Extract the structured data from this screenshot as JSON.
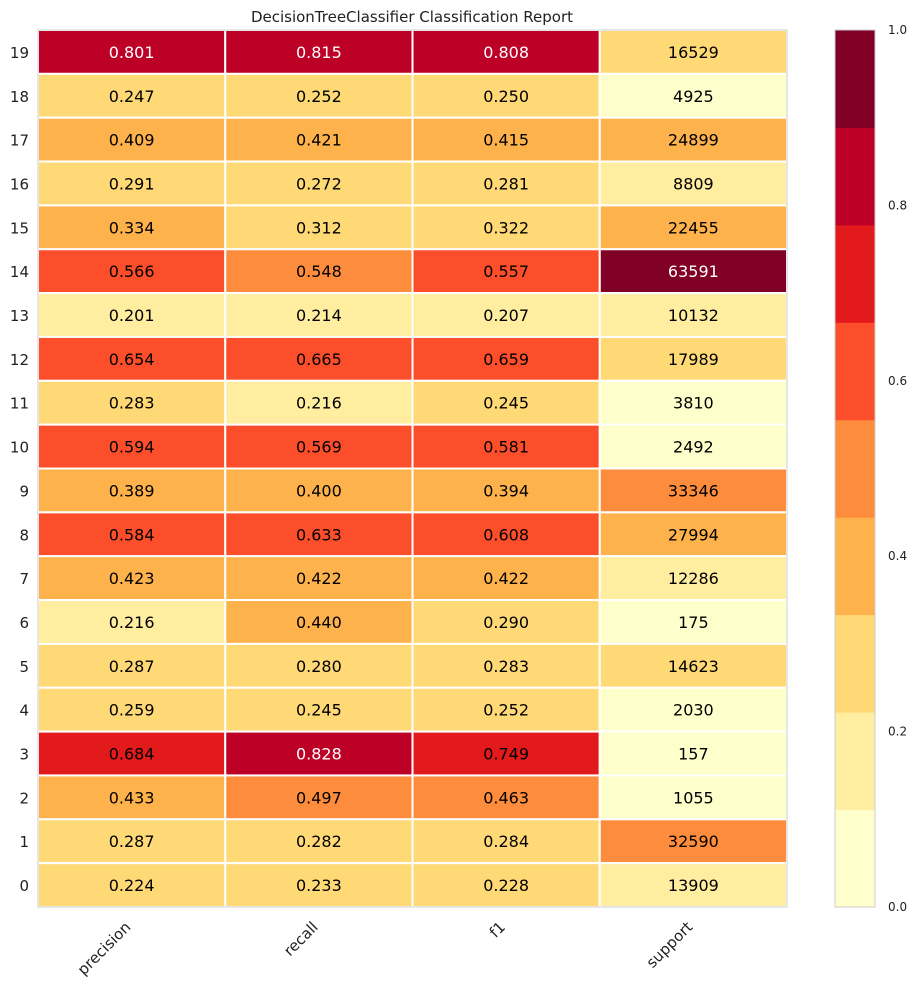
{
  "chart_data": {
    "type": "heatmap",
    "title": "DecisionTreeClassifier Classification Report",
    "columns": [
      "precision",
      "recall",
      "f1",
      "support"
    ],
    "rows": [
      "19",
      "18",
      "17",
      "16",
      "15",
      "14",
      "13",
      "12",
      "11",
      "10",
      "9",
      "8",
      "7",
      "6",
      "5",
      "4",
      "3",
      "2",
      "1",
      "0"
    ],
    "values": [
      [
        "0.801",
        "0.815",
        "0.808",
        "16529"
      ],
      [
        "0.247",
        "0.252",
        "0.250",
        "4925"
      ],
      [
        "0.409",
        "0.421",
        "0.415",
        "24899"
      ],
      [
        "0.291",
        "0.272",
        "0.281",
        "8809"
      ],
      [
        "0.334",
        "0.312",
        "0.322",
        "22455"
      ],
      [
        "0.566",
        "0.548",
        "0.557",
        "63591"
      ],
      [
        "0.201",
        "0.214",
        "0.207",
        "10132"
      ],
      [
        "0.654",
        "0.665",
        "0.659",
        "17989"
      ],
      [
        "0.283",
        "0.216",
        "0.245",
        "3810"
      ],
      [
        "0.594",
        "0.569",
        "0.581",
        "2492"
      ],
      [
        "0.389",
        "0.400",
        "0.394",
        "33346"
      ],
      [
        "0.584",
        "0.633",
        "0.608",
        "27994"
      ],
      [
        "0.423",
        "0.422",
        "0.422",
        "12286"
      ],
      [
        "0.216",
        "0.440",
        "0.290",
        "175"
      ],
      [
        "0.287",
        "0.280",
        "0.283",
        "14623"
      ],
      [
        "0.259",
        "0.245",
        "0.252",
        "2030"
      ],
      [
        "0.684",
        "0.828",
        "0.749",
        "157"
      ],
      [
        "0.433",
        "0.497",
        "0.463",
        "1055"
      ],
      [
        "0.287",
        "0.282",
        "0.284",
        "32590"
      ],
      [
        "0.224",
        "0.233",
        "0.228",
        "13909"
      ]
    ],
    "support_color_max": 63591,
    "colorbar": {
      "range": [
        0.0,
        1.0
      ],
      "ticks": [
        "0.0",
        "0.2",
        "0.4",
        "0.6",
        "0.8",
        "1.0"
      ],
      "colors": [
        "#ffffcc",
        "#ffeda0",
        "#fed976",
        "#feb24c",
        "#fd8d3c",
        "#fc4e2a",
        "#e31a1c",
        "#bd0026",
        "#800026"
      ]
    }
  }
}
